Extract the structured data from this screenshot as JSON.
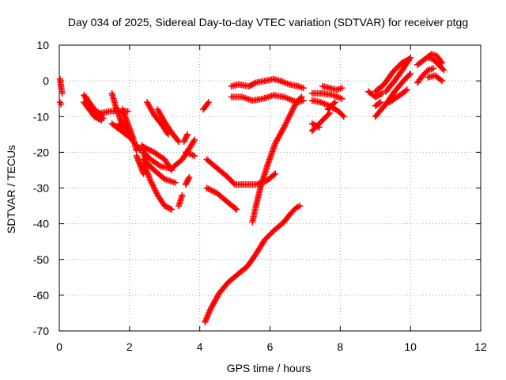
{
  "chart_data": {
    "type": "scatter",
    "title": "Day 034 of 2025, Sidereal Day-to-day VTEC variation (SDTVAR) for receiver ptgg",
    "xlabel": "GPS time / hours",
    "ylabel": "SDTVAR / TECUs",
    "xlim": [
      0,
      12
    ],
    "ylim": [
      -70,
      10
    ],
    "xticks": [
      "0",
      "2",
      "4",
      "6",
      "8",
      "10",
      "12"
    ],
    "yticks": [
      "10",
      "0",
      "-10",
      "-20",
      "-30",
      "-40",
      "-50",
      "-60",
      "-70"
    ],
    "xtick_values": [
      0,
      2,
      4,
      6,
      8,
      10,
      12
    ],
    "ytick_values": [
      10,
      0,
      -10,
      -20,
      -30,
      -40,
      -50,
      -60,
      -70
    ],
    "grid": true,
    "marker": "plus",
    "color": "#ff0000",
    "tracks": [
      {
        "points": [
          [
            0.02,
            0.5
          ],
          [
            0.05,
            -1.5
          ],
          [
            0.08,
            -3.5
          ]
        ]
      },
      {
        "points": [
          [
            0.02,
            -6
          ],
          [
            0.05,
            -6.5
          ]
        ]
      },
      {
        "points": [
          [
            0.7,
            -4
          ],
          [
            0.85,
            -6
          ],
          [
            1.0,
            -8
          ],
          [
            1.2,
            -9.5
          ]
        ]
      },
      {
        "points": [
          [
            0.7,
            -6
          ],
          [
            0.85,
            -8
          ],
          [
            1.0,
            -10
          ],
          [
            1.2,
            -11
          ]
        ]
      },
      {
        "points": [
          [
            0.75,
            -4.5
          ],
          [
            0.9,
            -7
          ],
          [
            1.05,
            -9
          ],
          [
            1.25,
            -10.5
          ]
        ]
      },
      {
        "points": [
          [
            1.2,
            -9
          ],
          [
            1.45,
            -8.5
          ],
          [
            1.7,
            -8.5
          ],
          [
            1.95,
            -8.5
          ]
        ]
      },
      {
        "points": [
          [
            1.5,
            -3.5
          ],
          [
            1.6,
            -7
          ],
          [
            1.75,
            -11
          ],
          [
            1.95,
            -14
          ],
          [
            2.1,
            -17
          ]
        ]
      },
      {
        "points": [
          [
            1.5,
            -12
          ],
          [
            1.7,
            -13.5
          ],
          [
            1.9,
            -15
          ],
          [
            2.1,
            -16.5
          ]
        ]
      },
      {
        "points": [
          [
            1.7,
            -12
          ],
          [
            1.9,
            -14.5
          ],
          [
            2.1,
            -16
          ]
        ]
      },
      {
        "points": [
          [
            1.8,
            -8
          ],
          [
            1.95,
            -12
          ],
          [
            2.1,
            -16
          ],
          [
            2.2,
            -19.5
          ]
        ]
      },
      {
        "points": [
          [
            2.4,
            -18.5
          ],
          [
            2.7,
            -20
          ],
          [
            3.0,
            -22
          ],
          [
            3.2,
            -25
          ]
        ]
      },
      {
        "points": [
          [
            2.4,
            -20
          ],
          [
            2.6,
            -22
          ],
          [
            2.9,
            -24
          ],
          [
            3.2,
            -24.5
          ],
          [
            3.5,
            -22
          ],
          [
            3.7,
            -19
          ],
          [
            3.85,
            -16.5
          ]
        ]
      },
      {
        "points": [
          [
            2.4,
            -23
          ],
          [
            2.6,
            -28
          ],
          [
            2.8,
            -32
          ],
          [
            3.0,
            -35
          ],
          [
            3.2,
            -36
          ]
        ]
      },
      {
        "points": [
          [
            2.4,
            -22
          ],
          [
            2.7,
            -25
          ],
          [
            3.0,
            -27.5
          ],
          [
            3.3,
            -28.5
          ]
        ]
      },
      {
        "points": [
          [
            2.35,
            -18
          ],
          [
            2.45,
            -22
          ]
        ]
      },
      {
        "points": [
          [
            2.2,
            -21
          ],
          [
            2.3,
            -23.5
          ],
          [
            2.4,
            -26
          ]
        ]
      },
      {
        "points": [
          [
            2.2,
            -18
          ],
          [
            2.3,
            -19.5
          ]
        ]
      },
      {
        "points": [
          [
            2.8,
            -8
          ],
          [
            3.0,
            -11.5
          ],
          [
            3.2,
            -14.5
          ],
          [
            3.4,
            -17
          ]
        ]
      },
      {
        "points": [
          [
            2.5,
            -6
          ],
          [
            2.7,
            -9.5
          ],
          [
            2.9,
            -12
          ],
          [
            3.1,
            -15
          ]
        ]
      },
      {
        "points": [
          [
            3.4,
            -35
          ],
          [
            3.5,
            -32
          ]
        ]
      },
      {
        "points": [
          [
            3.6,
            -29
          ],
          [
            3.7,
            -27
          ]
        ]
      },
      {
        "points": [
          [
            3.6,
            -20
          ],
          [
            3.85,
            -21
          ]
        ]
      },
      {
        "points": [
          [
            3.55,
            -17
          ],
          [
            3.65,
            -15
          ]
        ]
      },
      {
        "points": [
          [
            4.1,
            -8
          ],
          [
            4.25,
            -6
          ]
        ]
      },
      {
        "points": [
          [
            4.2,
            -22
          ],
          [
            4.5,
            -24.5
          ],
          [
            4.8,
            -27
          ],
          [
            5.0,
            -29
          ],
          [
            5.3,
            -29
          ],
          [
            5.6,
            -29
          ],
          [
            5.9,
            -28
          ],
          [
            6.15,
            -26
          ]
        ]
      },
      {
        "points": [
          [
            4.2,
            -30
          ],
          [
            4.5,
            -31.5
          ],
          [
            4.8,
            -34
          ],
          [
            5.05,
            -36
          ]
        ]
      },
      {
        "points": [
          [
            4.15,
            -67.5
          ],
          [
            4.3,
            -64
          ],
          [
            4.55,
            -59.5
          ],
          [
            4.8,
            -56.5
          ],
          [
            5.1,
            -54
          ],
          [
            5.35,
            -52
          ],
          [
            5.6,
            -48.5
          ],
          [
            5.85,
            -44.5
          ],
          [
            6.1,
            -42
          ],
          [
            6.4,
            -39.5
          ],
          [
            6.6,
            -37
          ],
          [
            6.75,
            -35.5
          ],
          [
            6.85,
            -35
          ]
        ]
      },
      {
        "points": [
          [
            5.5,
            -39.5
          ],
          [
            5.6,
            -35
          ],
          [
            5.75,
            -29
          ],
          [
            5.95,
            -23
          ],
          [
            6.15,
            -17.5
          ],
          [
            6.4,
            -13
          ],
          [
            6.6,
            -9
          ],
          [
            6.75,
            -6
          ],
          [
            6.9,
            -4.5
          ]
        ]
      },
      {
        "points": [
          [
            4.9,
            -1.5
          ],
          [
            5.1,
            -1
          ],
          [
            5.4,
            -1.5
          ],
          [
            5.6,
            -0.5
          ],
          [
            5.85,
            0
          ],
          [
            6.1,
            0.5
          ],
          [
            6.3,
            0
          ],
          [
            6.55,
            -1
          ],
          [
            6.8,
            -1.5
          ],
          [
            6.95,
            -2
          ]
        ]
      },
      {
        "points": [
          [
            4.9,
            -4.5
          ],
          [
            5.2,
            -4.5
          ],
          [
            5.5,
            -5.5
          ],
          [
            5.8,
            -5
          ],
          [
            6.1,
            -4
          ],
          [
            6.4,
            -4.5
          ],
          [
            6.65,
            -5.5
          ],
          [
            6.8,
            -6
          ],
          [
            6.95,
            -5.5
          ]
        ]
      },
      {
        "points": [
          [
            7.2,
            -3.5
          ],
          [
            7.5,
            -3.5
          ],
          [
            7.8,
            -4
          ],
          [
            8.05,
            -5
          ]
        ]
      },
      {
        "points": [
          [
            7.5,
            -1.5
          ],
          [
            7.7,
            -2
          ],
          [
            7.9,
            -2.5
          ],
          [
            8.05,
            -2
          ]
        ]
      },
      {
        "points": [
          [
            7.2,
            -5.5
          ],
          [
            7.45,
            -6
          ],
          [
            7.7,
            -7
          ],
          [
            7.95,
            -8.5
          ],
          [
            8.1,
            -10
          ]
        ]
      },
      {
        "points": [
          [
            7.2,
            -14
          ],
          [
            7.45,
            -11.5
          ],
          [
            7.7,
            -9
          ]
        ]
      },
      {
        "points": [
          [
            7.2,
            -12
          ],
          [
            7.4,
            -13
          ]
        ]
      },
      {
        "points": [
          [
            7.65,
            -8
          ],
          [
            7.85,
            -6
          ]
        ]
      },
      {
        "points": [
          [
            8.8,
            -3
          ],
          [
            9.0,
            -4.5
          ],
          [
            9.2,
            -3.5
          ]
        ]
      },
      {
        "points": [
          [
            9.0,
            -7
          ],
          [
            9.15,
            -6
          ]
        ]
      },
      {
        "points": [
          [
            9.0,
            -10
          ],
          [
            9.3,
            -6.5
          ],
          [
            9.55,
            -3
          ],
          [
            9.8,
            0
          ],
          [
            10.0,
            2
          ]
        ]
      },
      {
        "points": [
          [
            9.0,
            -3
          ],
          [
            9.25,
            -1
          ],
          [
            9.5,
            2.5
          ],
          [
            9.75,
            5
          ],
          [
            9.95,
            6
          ]
        ]
      },
      {
        "points": [
          [
            9.3,
            -3
          ],
          [
            9.55,
            0
          ],
          [
            9.8,
            3.5
          ],
          [
            10.0,
            6.5
          ]
        ]
      },
      {
        "points": [
          [
            9.4,
            -6
          ],
          [
            9.7,
            -4
          ],
          [
            9.9,
            -2.5
          ]
        ]
      },
      {
        "points": [
          [
            10.2,
            -0.5
          ],
          [
            10.35,
            1.5
          ],
          [
            10.5,
            3
          ],
          [
            10.65,
            3.5
          ]
        ]
      },
      {
        "points": [
          [
            10.2,
            4.5
          ],
          [
            10.4,
            6
          ],
          [
            10.6,
            7.5
          ],
          [
            10.75,
            7
          ],
          [
            10.9,
            5
          ]
        ]
      },
      {
        "points": [
          [
            10.5,
            1
          ],
          [
            10.7,
            1.5
          ],
          [
            10.9,
            0
          ]
        ]
      },
      {
        "points": [
          [
            10.5,
            6.5
          ],
          [
            10.65,
            6
          ],
          [
            10.8,
            4.5
          ],
          [
            10.95,
            3
          ]
        ]
      }
    ]
  }
}
